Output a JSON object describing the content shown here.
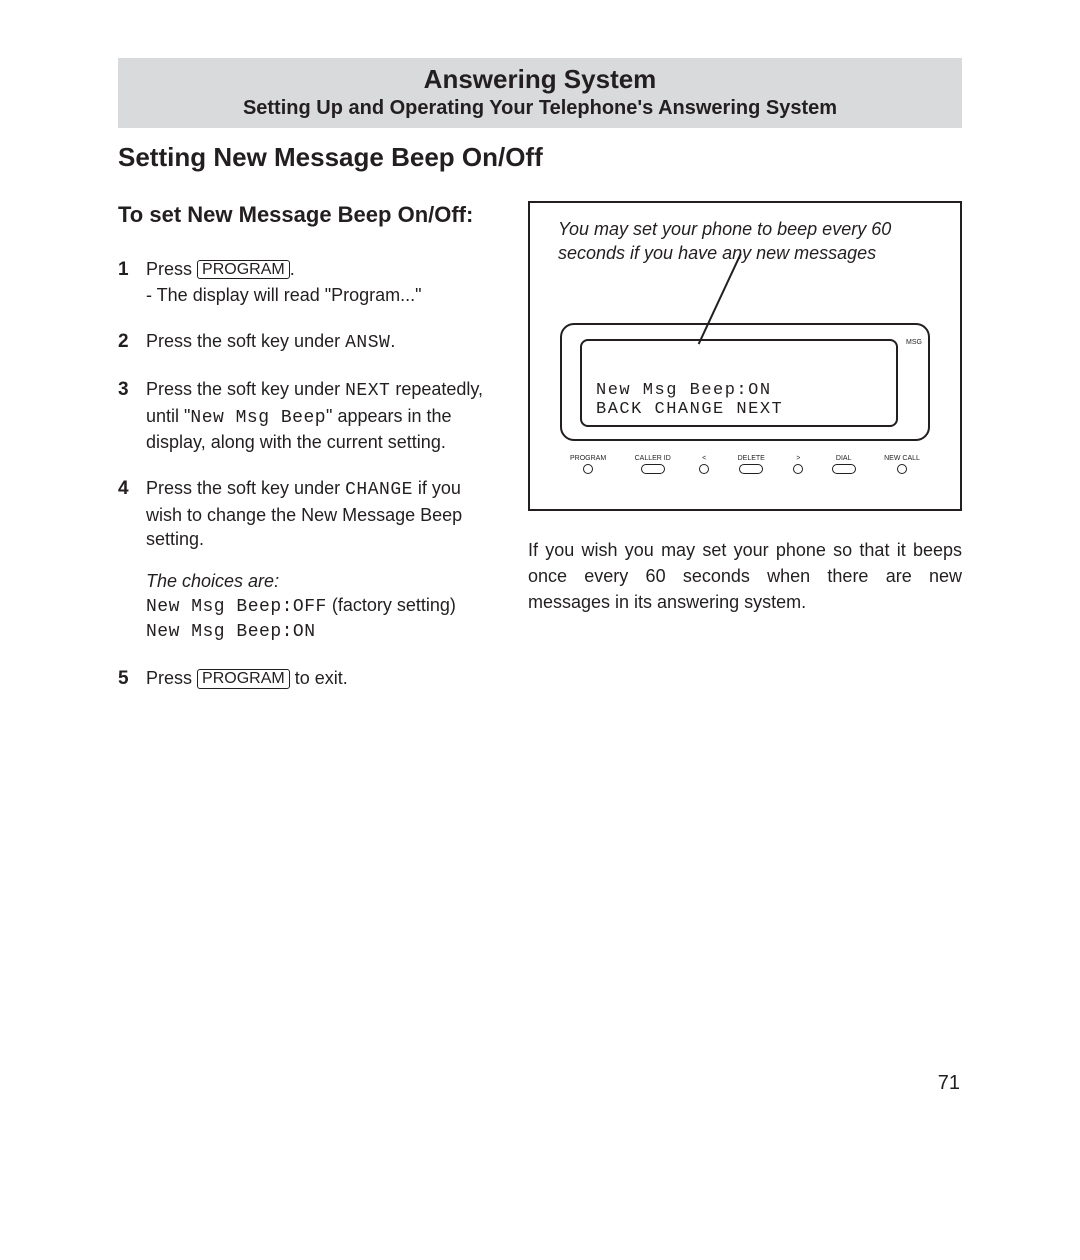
{
  "header": {
    "title": "Answering System",
    "subtitle": "Setting Up and Operating Your Telephone's Answering System"
  },
  "section_title": "Setting New Message Beep On/Off",
  "left": {
    "subhead": "To set New Message Beep On/Off:",
    "step1_a": "Press ",
    "step1_btn": "PROGRAM",
    "step1_b": ".",
    "step1_sub": "- The display will read \"Program...\"",
    "step2_a": "Press the soft key under ",
    "step2_lcd": "ANSW",
    "step2_b": ".",
    "step3_a": "Press the soft key under ",
    "step3_lcd": "NEXT",
    "step3_b": " repeatedly, until \"",
    "step3_lcd2": "New Msg Beep",
    "step3_c": "\" appears in the display, along with the current setting.",
    "step4_a": "Press the soft key under ",
    "step4_lcd": "CHANGE",
    "step4_b": " if you wish to change the New Message Beep setting.",
    "choices_label": "The choices are:",
    "choice1_lcd": "New Msg Beep:OFF",
    "choice1_tail": " (factory setting)",
    "choice2_lcd": "New Msg Beep:ON",
    "step5_a": "Press ",
    "step5_btn": "PROGRAM",
    "step5_b": "  to exit."
  },
  "figure": {
    "caption": "You may set your phone to beep every 60 seconds if you have any new messages",
    "screen_line1": "New Msg Beep:ON",
    "screen_line2": "BACK CHANGE NEXT",
    "msg_label": "MSG",
    "buttons": {
      "b1": "PROGRAM",
      "b2": "CALLER ID",
      "b3": "<",
      "b4": "DELETE",
      "b5": ">",
      "b6": "DIAL",
      "b7": "NEW CALL"
    }
  },
  "body_text": "If you wish you may set your phone so that it beeps once every 60 seconds when there are new messages in its answering system.",
  "page_number": "71"
}
